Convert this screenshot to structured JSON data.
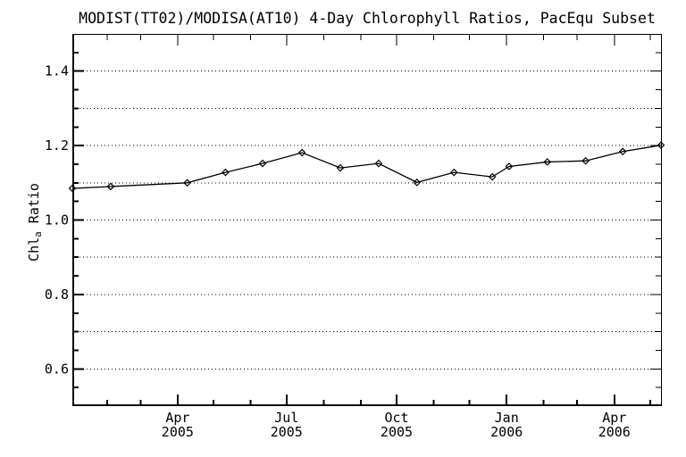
{
  "figure": {
    "title": "MODIST(TT02)/MODISA(AT10) 4-Day Chlorophyll Ratios, PacEqu Subset",
    "background_color": "#ffffff",
    "foreground_color": "#000000"
  },
  "y_axis_label": {
    "prefix": "Chl",
    "subscript": "a",
    "suffix": " Ratio"
  },
  "chart_data": {
    "type": "line",
    "title": "MODIST(TT02)/MODISA(AT10) 4-Day Chlorophyll Ratios, PacEqu Subset",
    "xlabel": "",
    "ylabel": "Chl_a Ratio",
    "x_unit": "days since 2005-01-01",
    "xlim": [
      2,
      494
    ],
    "ylim": [
      0.5,
      1.5
    ],
    "grid": "horizontal dotted lines every 0.1",
    "legend": "none",
    "marker": "diamond",
    "line_color": "#000000",
    "x_major_ticks": [
      {
        "day": 90,
        "month": "Apr",
        "year": "2005"
      },
      {
        "day": 181,
        "month": "Jul",
        "year": "2005"
      },
      {
        "day": 273,
        "month": "Oct",
        "year": "2005"
      },
      {
        "day": 365,
        "month": "Jan",
        "year": "2006"
      },
      {
        "day": 455,
        "month": "Apr",
        "year": "2006"
      }
    ],
    "x_minor_tick_days": [
      31,
      59,
      120,
      151,
      212,
      243,
      304,
      334,
      396,
      424,
      485
    ],
    "y_labeled_ticks": [
      {
        "value": 0.6,
        "label": "0.6"
      },
      {
        "value": 0.8,
        "label": "0.8"
      },
      {
        "value": 1.0,
        "label": "1.0"
      },
      {
        "value": 1.2,
        "label": "1.2"
      },
      {
        "value": 1.4,
        "label": "1.4"
      }
    ],
    "y_gridline_values": [
      0.6,
      0.7,
      0.8,
      0.9,
      1.0,
      1.1,
      1.2,
      1.3,
      1.4
    ],
    "y_minor_tick_step": 0.05,
    "series": [
      {
        "name": "MODIST(TT02)/MODISA(AT10) chlorophyll ratio",
        "color": "#000000",
        "points": [
          {
            "day": 2,
            "value": 1.085
          },
          {
            "day": 34,
            "value": 1.09
          },
          {
            "day": 98,
            "value": 1.1
          },
          {
            "day": 130,
            "value": 1.128
          },
          {
            "day": 161,
            "value": 1.152
          },
          {
            "day": 194,
            "value": 1.181
          },
          {
            "day": 226,
            "value": 1.14
          },
          {
            "day": 258,
            "value": 1.152
          },
          {
            "day": 290,
            "value": 1.101
          },
          {
            "day": 321,
            "value": 1.128
          },
          {
            "day": 353,
            "value": 1.116
          },
          {
            "day": 367,
            "value": 1.144
          },
          {
            "day": 399,
            "value": 1.156
          },
          {
            "day": 431,
            "value": 1.159
          },
          {
            "day": 462,
            "value": 1.184
          },
          {
            "day": 494,
            "value": 1.201
          }
        ]
      }
    ]
  }
}
